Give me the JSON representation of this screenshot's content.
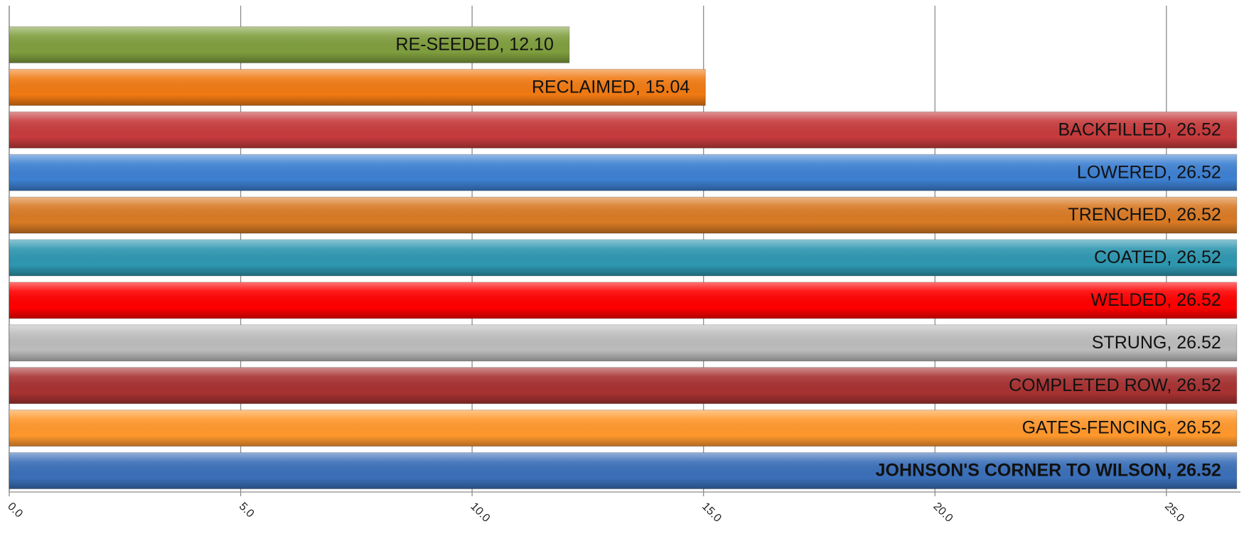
{
  "chart_data": {
    "type": "barh",
    "values": [
      12.1,
      15.04,
      26.52,
      26.52,
      26.52,
      26.52,
      26.52,
      26.52,
      26.52,
      26.52,
      26.52
    ],
    "value_labels": [
      "RE-SEEDED, 12.10",
      "RECLAIMED, 15.04",
      "BACKFILLED, 26.52",
      "LOWERED, 26.52",
      "TRENCHED, 26.52",
      "COATED, 26.52",
      "WELDED, 26.52",
      "STRUNG, 26.52",
      "COMPLETED ROW, 26.52",
      "GATES-FENCING, 26.52",
      "JOHNSON'S CORNER TO WILSON, 26.52"
    ],
    "colors": [
      "#7f9e3e",
      "#f07a13",
      "#c63b3d",
      "#3d80d2",
      "#d97a25",
      "#2e97b0",
      "#ff0000",
      "#bcbcbc",
      "#a83232",
      "#ff982c",
      "#3a6fb8"
    ],
    "xlim": [
      0,
      26.6
    ],
    "xticks": [
      {
        "value": 0,
        "label": "0.0"
      },
      {
        "value": 5,
        "label": "5.0"
      },
      {
        "value": 10,
        "label": "10.0"
      },
      {
        "value": 15,
        "label": "15.0"
      },
      {
        "value": 20,
        "label": "20.0"
      },
      {
        "value": 25,
        "label": "25.0"
      }
    ],
    "grid": true
  }
}
